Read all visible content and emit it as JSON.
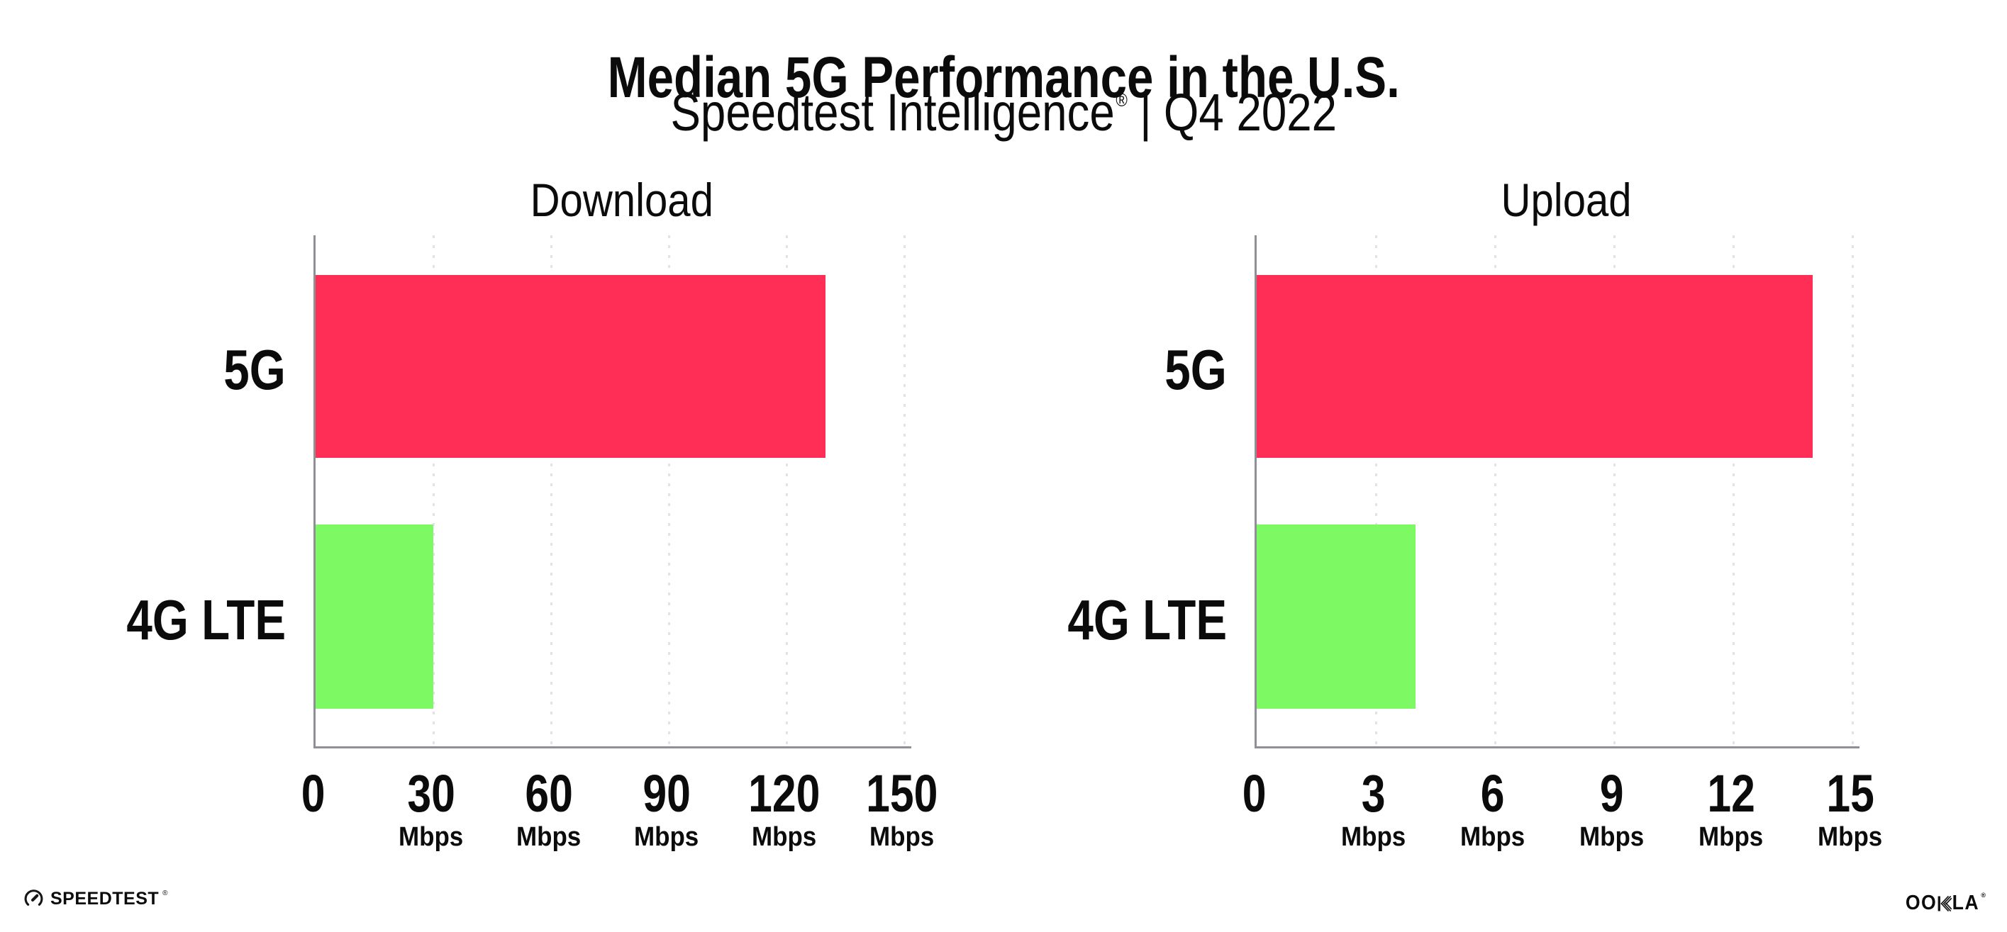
{
  "header": {
    "title": "Median 5G Performance in the U.S.",
    "subtitle_brand": "Speedtest Intelligence",
    "subtitle_reg": "®",
    "subtitle_separator": "|",
    "subtitle_period": "Q4 2022"
  },
  "chart_data": [
    {
      "type": "bar",
      "orientation": "horizontal",
      "title": "Download",
      "categories": [
        "5G",
        "4G LTE"
      ],
      "values": [
        130,
        30
      ],
      "unit": "Mbps",
      "ticks": [
        0,
        30,
        60,
        90,
        120,
        150
      ],
      "xlim": [
        0,
        150
      ],
      "grid": "vertical-dotted",
      "legend": "none"
    },
    {
      "type": "bar",
      "orientation": "horizontal",
      "title": "Upload",
      "categories": [
        "5G",
        "4G LTE"
      ],
      "values": [
        14,
        4
      ],
      "unit": "Mbps",
      "ticks": [
        0,
        3,
        6,
        9,
        12,
        15
      ],
      "xlim": [
        0,
        15
      ],
      "grid": "vertical-dotted",
      "legend": "none"
    }
  ],
  "colors": {
    "bar_5g": "#ff2e57",
    "bar_4g_lte": "#7dfa63",
    "axis": "#8f8f96",
    "gridline": "#e2e2ea",
    "text": "#0b0b0c",
    "background": "#ffffff"
  },
  "footer": {
    "speedtest_label": "SPEEDTEST",
    "speedtest_reg": "®",
    "ookla_pre": "OO",
    "ookla_k": "K",
    "ookla_post": "LA",
    "ookla_reg": "®"
  }
}
